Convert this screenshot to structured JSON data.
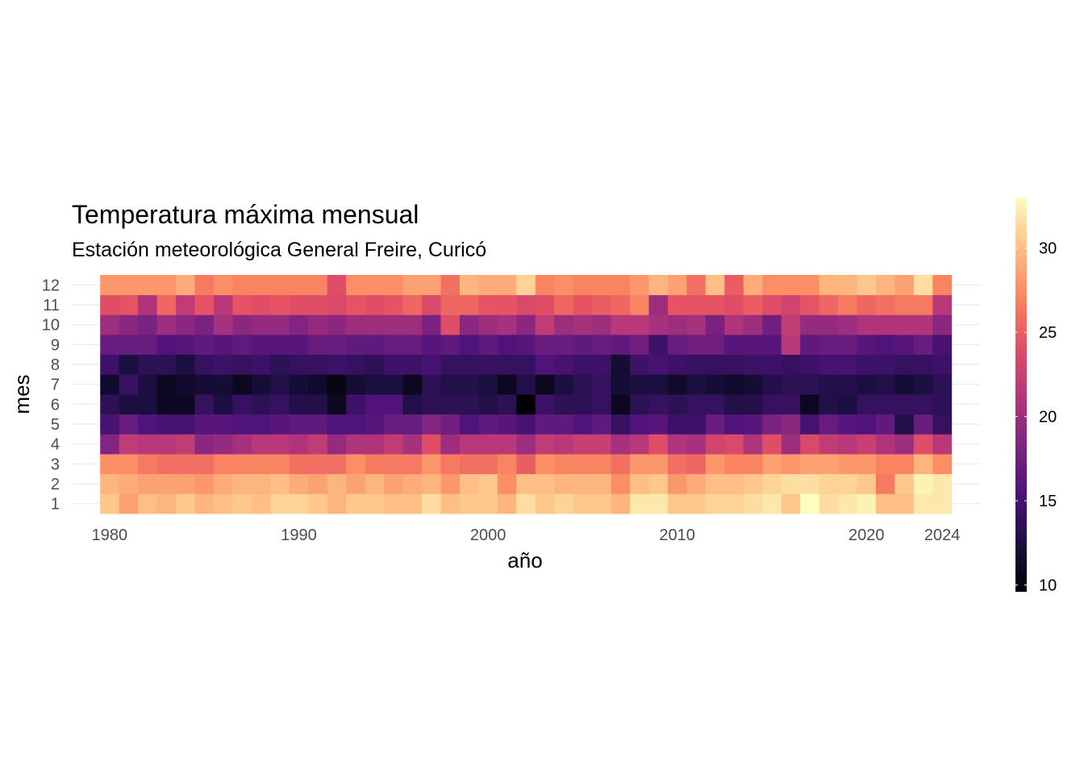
{
  "chart_data": {
    "type": "heatmap",
    "title": "Temperatura máxima mensual",
    "subtitle": "Estación meteorológica General Freire, Curicó",
    "xlabel": "año",
    "ylabel": "mes",
    "x_ticks": [
      1980,
      1990,
      2000,
      2010,
      2020,
      2024
    ],
    "y_ticks": [
      1,
      2,
      3,
      4,
      5,
      6,
      7,
      8,
      9,
      10,
      11,
      12
    ],
    "xlim": [
      1978,
      2026
    ],
    "ylim": [
      0.5,
      12.5
    ],
    "legend": {
      "position": "right",
      "ticks": [
        10,
        15,
        20,
        25,
        30
      ],
      "range": [
        9.6,
        33
      ],
      "palette": "magma"
    },
    "grid": true,
    "x": [
      1980,
      1981,
      1982,
      1983,
      1984,
      1985,
      1986,
      1987,
      1988,
      1989,
      1990,
      1991,
      1992,
      1993,
      1994,
      1995,
      1996,
      1997,
      1998,
      1999,
      2000,
      2001,
      2002,
      2003,
      2004,
      2005,
      2006,
      2007,
      2008,
      2009,
      2010,
      2011,
      2012,
      2013,
      2014,
      2015,
      2016,
      2017,
      2018,
      2019,
      2020,
      2021,
      2022,
      2023,
      2024
    ],
    "rows": [
      {
        "month": 1,
        "values": [
          30.5,
          28.5,
          30,
          29.5,
          30.5,
          29.5,
          30,
          30.5,
          30,
          31,
          31,
          30.5,
          29.5,
          30.5,
          30.5,
          30,
          30,
          31.5,
          30,
          30.5,
          30.5,
          29.5,
          31.5,
          30.5,
          31,
          30.5,
          30.5,
          29.5,
          32,
          32,
          30.5,
          30.5,
          31,
          31,
          31.5,
          32,
          30.5,
          33,
          31.5,
          32,
          32.5,
          30,
          30,
          32,
          32
        ]
      },
      {
        "month": 2,
        "values": [
          29.5,
          29,
          28.5,
          28.5,
          28.5,
          28,
          29,
          29.5,
          29.5,
          30,
          29,
          28.5,
          29.5,
          28.5,
          29.5,
          28.5,
          29,
          29.5,
          28,
          30,
          30.5,
          27.5,
          30,
          30,
          29.5,
          29.5,
          29.5,
          27.5,
          30,
          30.5,
          28,
          29,
          30,
          30,
          30.5,
          31,
          31.5,
          31.5,
          31,
          31,
          30.5,
          26.5,
          30.5,
          32.5,
          32
        ]
      },
      {
        "month": 3,
        "values": [
          27.5,
          27.5,
          26.5,
          26,
          26,
          26,
          27,
          27,
          27,
          27,
          26,
          26,
          26,
          27.5,
          26.5,
          26.5,
          26.5,
          28,
          26.5,
          26,
          26,
          27,
          25,
          27.5,
          27,
          27,
          27,
          26,
          28,
          28,
          26,
          25.5,
          28,
          27,
          27,
          28.5,
          28,
          28.5,
          28.5,
          28,
          28,
          27,
          27,
          29.5,
          27.5
        ]
      },
      {
        "month": 4,
        "values": [
          18.5,
          22,
          21.5,
          21.5,
          22,
          19,
          19.5,
          20.5,
          21.5,
          21.5,
          21,
          22,
          19.5,
          21,
          21,
          22,
          20.5,
          24,
          20,
          21.5,
          21.5,
          21.5,
          20,
          22,
          21.5,
          22.5,
          22.5,
          20.5,
          21.5,
          24,
          21,
          20.5,
          23,
          23.5,
          21,
          24,
          20,
          23.5,
          22,
          21.5,
          22.5,
          21,
          20,
          24,
          21.5
        ]
      },
      {
        "month": 5,
        "values": [
          15,
          17,
          15.5,
          15,
          15,
          16,
          16,
          15.5,
          15.5,
          16,
          16.5,
          16.5,
          15.5,
          15.5,
          16,
          17,
          17,
          18.5,
          17.5,
          15.5,
          16.5,
          16,
          15,
          16.5,
          16.5,
          15.5,
          16.5,
          14,
          15.5,
          16,
          14.5,
          14.5,
          17,
          15.5,
          16,
          18,
          19,
          15,
          17,
          16,
          15.5,
          16.5,
          13,
          17,
          14
        ]
      },
      {
        "month": 6,
        "values": [
          13.5,
          12.5,
          12.5,
          11,
          11,
          14,
          12.5,
          14,
          13.5,
          14,
          13,
          13,
          11,
          14.5,
          15.5,
          15.5,
          13,
          13.5,
          13.5,
          13.5,
          13,
          13.5,
          9.6,
          14.5,
          13.5,
          13.5,
          14,
          11,
          13.5,
          14,
          13.5,
          14,
          14,
          13,
          13,
          14,
          14,
          11,
          13,
          12.5,
          14,
          14,
          14,
          14,
          13.5
        ]
      },
      {
        "month": 7,
        "values": [
          11.5,
          14,
          12.5,
          11,
          11.5,
          12,
          12,
          11,
          12,
          13,
          12,
          11.5,
          10.5,
          12,
          12.5,
          12.5,
          11,
          13.5,
          13,
          13,
          12.5,
          11,
          13,
          11,
          12.5,
          13.5,
          14,
          12,
          12.5,
          12.5,
          11.5,
          12.5,
          12,
          11.5,
          12,
          13,
          13.5,
          13.5,
          13,
          13,
          12.5,
          13,
          12,
          12.5,
          13.5
        ]
      },
      {
        "month": 8,
        "values": [
          14.5,
          12.5,
          13.5,
          13.5,
          12.5,
          14,
          14.5,
          14,
          14.5,
          13.5,
          14,
          14,
          14.5,
          14,
          13.5,
          14.5,
          14.5,
          15,
          14,
          14,
          14,
          14,
          14,
          15.5,
          15,
          14.5,
          14.5,
          12,
          14.5,
          15,
          14.5,
          14,
          14,
          14,
          14.5,
          14.5,
          14,
          14.5,
          15,
          15,
          14.5,
          14.5,
          14,
          14,
          14.5
        ]
      },
      {
        "month": 9,
        "values": [
          17,
          17,
          17,
          15.5,
          16,
          16.5,
          16,
          16.5,
          16,
          16,
          16,
          17,
          17,
          16.5,
          16.5,
          17,
          17,
          16,
          16.5,
          15.5,
          16.5,
          15.5,
          16,
          17,
          17,
          16.5,
          17,
          16.5,
          17.5,
          14.5,
          17,
          17.5,
          17.5,
          16,
          16,
          16,
          21.5,
          16.5,
          17,
          17,
          16,
          15.5,
          16,
          17,
          15
        ]
      },
      {
        "month": 10,
        "values": [
          20,
          19,
          18,
          20,
          19,
          18,
          20.5,
          19,
          19.5,
          19.5,
          18.5,
          19.5,
          19,
          20,
          20,
          20,
          20,
          18,
          24,
          19,
          20,
          20.5,
          19,
          22,
          20,
          20.5,
          20,
          21.5,
          21.5,
          20.5,
          20,
          20.5,
          18,
          21,
          20,
          17.5,
          22,
          19.5,
          19.5,
          20,
          21,
          21,
          21,
          21,
          19
        ]
      },
      {
        "month": 11,
        "values": [
          24,
          24.5,
          21,
          25.5,
          22,
          24.5,
          21.5,
          24.5,
          24,
          24.5,
          24,
          24,
          23.5,
          24.5,
          24,
          24.5,
          25.5,
          23.5,
          25.5,
          25.5,
          24.5,
          24.5,
          23.5,
          24,
          25.5,
          24.5,
          25,
          25.5,
          27,
          20,
          24.5,
          24.5,
          24.5,
          24,
          25,
          24,
          23,
          24.5,
          25.5,
          26.5,
          25.5,
          26,
          26.5,
          26.5,
          21.5
        ]
      },
      {
        "month": 12,
        "values": [
          28,
          28,
          28,
          28,
          29,
          26.5,
          27.5,
          27,
          27,
          27,
          27,
          27,
          24,
          27.5,
          27.5,
          27.5,
          28.5,
          28.5,
          26,
          29.5,
          29,
          29,
          31,
          27,
          27.5,
          27,
          27,
          27,
          28,
          29.5,
          28.5,
          26,
          30,
          25,
          29,
          27.5,
          27.5,
          27.5,
          29.5,
          29.5,
          30.5,
          29.5,
          28.5,
          31.5,
          27
        ]
      }
    ]
  }
}
